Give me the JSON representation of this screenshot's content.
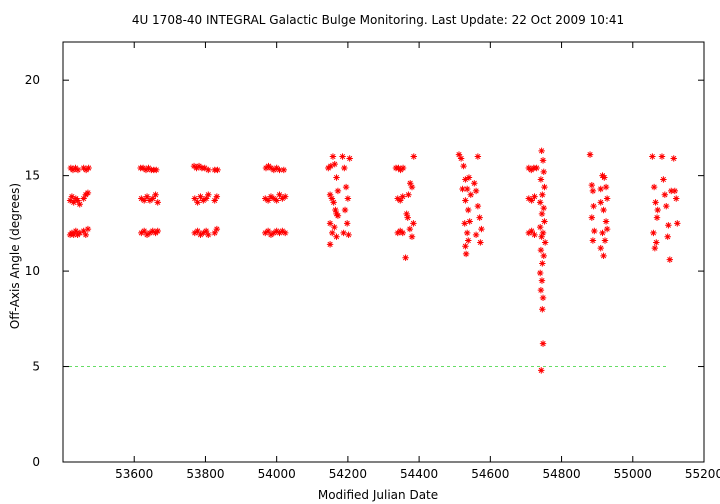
{
  "chart_data": {
    "type": "scatter",
    "title": "4U 1708-40   INTEGRAL Galactic Bulge Monitoring.  Last Update: 22 Oct 2009 10:41",
    "xlabel": "Modified Julian Date",
    "ylabel": "Off-Axis Angle (degrees)",
    "xlim": [
      53400,
      55200
    ],
    "ylim": [
      0,
      22
    ],
    "xticks": [
      53600,
      53800,
      54000,
      54200,
      54400,
      54600,
      54800,
      55000,
      55200
    ],
    "yticks": [
      0,
      5,
      10,
      15,
      20
    ],
    "grid": false,
    "reference_line": {
      "y": 5,
      "color": "#66dd66",
      "style": "dashed"
    },
    "series": [
      {
        "marker": "asterisk",
        "color": "#ff0000",
        "points": [
          [
            53422,
            15.4
          ],
          [
            53428,
            15.3
          ],
          [
            53435,
            15.4
          ],
          [
            53442,
            15.3
          ],
          [
            53458,
            15.4
          ],
          [
            53465,
            15.3
          ],
          [
            53472,
            15.4
          ],
          [
            53420,
            13.7
          ],
          [
            53425,
            13.9
          ],
          [
            53430,
            13.6
          ],
          [
            53436,
            13.8
          ],
          [
            53441,
            13.7
          ],
          [
            53447,
            13.5
          ],
          [
            53458,
            13.8
          ],
          [
            53464,
            14.0
          ],
          [
            53470,
            14.1
          ],
          [
            53420,
            11.9
          ],
          [
            53425,
            12.0
          ],
          [
            53430,
            11.9
          ],
          [
            53436,
            12.1
          ],
          [
            53441,
            11.9
          ],
          [
            53447,
            12.0
          ],
          [
            53458,
            12.1
          ],
          [
            53464,
            11.9
          ],
          [
            53470,
            12.2
          ],
          [
            53618,
            15.4
          ],
          [
            53625,
            15.4
          ],
          [
            53633,
            15.3
          ],
          [
            53640,
            15.4
          ],
          [
            53648,
            15.3
          ],
          [
            53655,
            15.3
          ],
          [
            53662,
            15.3
          ],
          [
            53620,
            13.8
          ],
          [
            53628,
            13.7
          ],
          [
            53636,
            13.9
          ],
          [
            53644,
            13.7
          ],
          [
            53652,
            13.8
          ],
          [
            53660,
            14.0
          ],
          [
            53666,
            13.6
          ],
          [
            53620,
            12.0
          ],
          [
            53628,
            12.1
          ],
          [
            53636,
            11.9
          ],
          [
            53644,
            12.0
          ],
          [
            53652,
            12.1
          ],
          [
            53660,
            12.0
          ],
          [
            53666,
            12.1
          ],
          [
            53768,
            15.5
          ],
          [
            53775,
            15.4
          ],
          [
            53782,
            15.5
          ],
          [
            53790,
            15.4
          ],
          [
            53798,
            15.4
          ],
          [
            53808,
            15.3
          ],
          [
            53826,
            15.3
          ],
          [
            53834,
            15.3
          ],
          [
            53770,
            13.8
          ],
          [
            53778,
            13.6
          ],
          [
            53786,
            13.9
          ],
          [
            53794,
            13.7
          ],
          [
            53802,
            13.8
          ],
          [
            53808,
            14.0
          ],
          [
            53826,
            13.7
          ],
          [
            53832,
            13.9
          ],
          [
            53770,
            12.0
          ],
          [
            53778,
            12.1
          ],
          [
            53786,
            11.9
          ],
          [
            53794,
            12.0
          ],
          [
            53802,
            12.1
          ],
          [
            53808,
            11.9
          ],
          [
            53826,
            12.0
          ],
          [
            53832,
            12.2
          ],
          [
            53970,
            15.4
          ],
          [
            53977,
            15.5
          ],
          [
            53984,
            15.4
          ],
          [
            53992,
            15.3
          ],
          [
            54000,
            15.4
          ],
          [
            54008,
            15.3
          ],
          [
            54020,
            15.3
          ],
          [
            53968,
            13.8
          ],
          [
            53976,
            13.7
          ],
          [
            53984,
            13.9
          ],
          [
            53992,
            13.8
          ],
          [
            54000,
            13.7
          ],
          [
            54008,
            14.0
          ],
          [
            54016,
            13.8
          ],
          [
            54024,
            13.9
          ],
          [
            53968,
            12.0
          ],
          [
            53976,
            12.1
          ],
          [
            53984,
            11.9
          ],
          [
            53992,
            12.0
          ],
          [
            54000,
            12.1
          ],
          [
            54008,
            12.0
          ],
          [
            54016,
            12.1
          ],
          [
            54024,
            12.0
          ],
          [
            54145,
            15.4
          ],
          [
            54152,
            15.5
          ],
          [
            54158,
            16.0
          ],
          [
            54163,
            15.6
          ],
          [
            54168,
            14.9
          ],
          [
            54172,
            14.2
          ],
          [
            54150,
            14.0
          ],
          [
            54155,
            13.8
          ],
          [
            54160,
            13.6
          ],
          [
            54165,
            13.2
          ],
          [
            54168,
            13.0
          ],
          [
            54150,
            12.5
          ],
          [
            54156,
            12.0
          ],
          [
            54162,
            12.3
          ],
          [
            54168,
            11.8
          ],
          [
            54150,
            11.4
          ],
          [
            54172,
            12.9
          ],
          [
            54185,
            16.0
          ],
          [
            54190,
            15.4
          ],
          [
            54195,
            14.4
          ],
          [
            54200,
            13.8
          ],
          [
            54205,
            15.9
          ],
          [
            54192,
            13.2
          ],
          [
            54198,
            12.5
          ],
          [
            54188,
            12.0
          ],
          [
            54202,
            11.9
          ],
          [
            54335,
            15.4
          ],
          [
            54342,
            15.4
          ],
          [
            54348,
            15.3
          ],
          [
            54355,
            15.4
          ],
          [
            54340,
            13.8
          ],
          [
            54347,
            13.7
          ],
          [
            54354,
            13.9
          ],
          [
            54340,
            12.0
          ],
          [
            54347,
            12.1
          ],
          [
            54354,
            12.0
          ],
          [
            54362,
            10.7
          ],
          [
            54365,
            13.0
          ],
          [
            54370,
            14.0
          ],
          [
            54375,
            14.6
          ],
          [
            54380,
            14.4
          ],
          [
            54385,
            16.0
          ],
          [
            54368,
            12.8
          ],
          [
            54374,
            12.2
          ],
          [
            54380,
            11.8
          ],
          [
            54384,
            12.5
          ],
          [
            54512,
            16.1
          ],
          [
            54518,
            15.9
          ],
          [
            54525,
            15.5
          ],
          [
            54530,
            14.8
          ],
          [
            54535,
            14.3
          ],
          [
            54540,
            14.9
          ],
          [
            54545,
            14.0
          ],
          [
            54522,
            14.3
          ],
          [
            54530,
            13.7
          ],
          [
            54538,
            13.2
          ],
          [
            54528,
            12.5
          ],
          [
            54535,
            12.0
          ],
          [
            54542,
            12.6
          ],
          [
            54530,
            11.3
          ],
          [
            54538,
            11.6
          ],
          [
            54532,
            10.9
          ],
          [
            54555,
            14.6
          ],
          [
            54560,
            14.2
          ],
          [
            54565,
            13.4
          ],
          [
            54570,
            12.8
          ],
          [
            54575,
            12.2
          ],
          [
            54565,
            16.0
          ],
          [
            54572,
            11.5
          ],
          [
            54560,
            11.9
          ],
          [
            54708,
            15.4
          ],
          [
            54715,
            15.3
          ],
          [
            54722,
            15.4
          ],
          [
            54730,
            15.4
          ],
          [
            54708,
            13.8
          ],
          [
            54716,
            13.7
          ],
          [
            54724,
            13.9
          ],
          [
            54708,
            12.0
          ],
          [
            54716,
            12.1
          ],
          [
            54724,
            11.9
          ],
          [
            54744,
            16.3
          ],
          [
            54748,
            15.8
          ],
          [
            54750,
            15.2
          ],
          [
            54742,
            14.8
          ],
          [
            54752,
            14.4
          ],
          [
            54746,
            14.0
          ],
          [
            54740,
            13.6
          ],
          [
            54750,
            13.3
          ],
          [
            54745,
            13.0
          ],
          [
            54752,
            12.6
          ],
          [
            54740,
            12.3
          ],
          [
            54748,
            12.0
          ],
          [
            54744,
            11.8
          ],
          [
            54754,
            11.5
          ],
          [
            54742,
            11.1
          ],
          [
            54750,
            10.8
          ],
          [
            54746,
            10.4
          ],
          [
            54740,
            9.9
          ],
          [
            54745,
            9.5
          ],
          [
            54742,
            9.0
          ],
          [
            54748,
            8.6
          ],
          [
            54746,
            8.0
          ],
          [
            54748,
            6.2
          ],
          [
            54743,
            4.8
          ],
          [
            54880,
            16.1
          ],
          [
            54885,
            14.5
          ],
          [
            54888,
            14.2
          ],
          [
            54890,
            13.4
          ],
          [
            54885,
            12.8
          ],
          [
            54892,
            12.1
          ],
          [
            54888,
            11.6
          ],
          [
            54910,
            14.3
          ],
          [
            54915,
            15.0
          ],
          [
            54920,
            14.9
          ],
          [
            54925,
            14.4
          ],
          [
            54910,
            13.6
          ],
          [
            54918,
            13.2
          ],
          [
            54925,
            12.6
          ],
          [
            54915,
            12.0
          ],
          [
            54922,
            11.6
          ],
          [
            54910,
            11.2
          ],
          [
            54918,
            10.8
          ],
          [
            54928,
            12.2
          ],
          [
            54928,
            13.8
          ],
          [
            55055,
            16.0
          ],
          [
            55060,
            14.4
          ],
          [
            55064,
            13.6
          ],
          [
            55068,
            12.8
          ],
          [
            55058,
            12.0
          ],
          [
            55066,
            11.5
          ],
          [
            55062,
            11.2
          ],
          [
            55070,
            13.2
          ],
          [
            55082,
            16.0
          ],
          [
            55086,
            14.8
          ],
          [
            55090,
            14.0
          ],
          [
            55094,
            13.4
          ],
          [
            55100,
            12.4
          ],
          [
            55104,
            10.6
          ],
          [
            55098,
            11.8
          ],
          [
            55108,
            14.2
          ],
          [
            55115,
            15.9
          ],
          [
            55118,
            14.2
          ],
          [
            55122,
            13.8
          ],
          [
            55125,
            12.5
          ]
        ]
      }
    ]
  }
}
